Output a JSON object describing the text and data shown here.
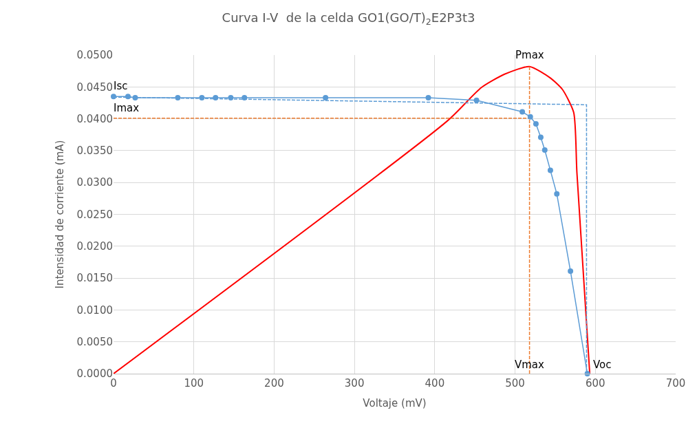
{
  "chart_data": {
    "type": "line",
    "title": "Curva I-V  de la celda GO1(GO/T)$_{2}$E2P3t3",
    "xlabel": "Voltaje (mV)",
    "ylabel": "Intensidad de corriente (mA)",
    "xlim": [
      0,
      700
    ],
    "xticks": [
      0,
      100,
      200,
      300,
      400,
      500,
      600,
      700
    ],
    "ylim": [
      0,
      0.05
    ],
    "yticks": [
      {
        "value": 0,
        "label": "0.0000"
      },
      {
        "value": 0.005,
        "label": "0.0050"
      },
      {
        "value": 0.01,
        "label": "0.0100"
      },
      {
        "value": 0.015,
        "label": "0.0150"
      },
      {
        "value": 0.02,
        "label": "0.0200"
      },
      {
        "value": 0.025,
        "label": "0.0250"
      },
      {
        "value": 0.03,
        "label": "0.0300"
      },
      {
        "value": 0.035,
        "label": "0.0350"
      },
      {
        "value": 0.04,
        "label": "0.0400"
      },
      {
        "value": 0.045,
        "label": "0.0450"
      },
      {
        "value": 0.05,
        "label": "0.0500"
      }
    ],
    "grid": true,
    "series": [
      {
        "color": "#ff0000",
        "marker": "none",
        "line_style": "solid",
        "x": [
          0,
          416,
          458,
          487,
          518,
          544,
          559,
          573,
          577,
          593
        ],
        "values": [
          0,
          0.0397,
          0.0449,
          0.047,
          0.0482,
          0.0464,
          0.0446,
          0.041,
          0.0316,
          0
        ]
      },
      {
        "color": "#5b9bd5",
        "marker": "none",
        "line_style": "dashed",
        "x": [
          0,
          589,
          589
        ],
        "values": [
          0.0434,
          0.0422,
          0
        ]
      },
      {
        "color": "#ed7d31",
        "marker": "none",
        "line_style": "dashed",
        "x": [
          0,
          518,
          null,
          518,
          518
        ],
        "values": [
          0.0401,
          0.0401,
          null,
          0,
          0.0482
        ]
      },
      {
        "color": "#5b9bd5",
        "marker": "circle",
        "line_style": "solid",
        "x": [
          0,
          18,
          27,
          80,
          110,
          127,
          146,
          163,
          264,
          392,
          452,
          509,
          519,
          526,
          532,
          537,
          544,
          552,
          569,
          590
        ],
        "values": [
          0.0435,
          0.0435,
          0.0433,
          0.0433,
          0.0433,
          0.0433,
          0.0433,
          0.0433,
          0.0433,
          0.0433,
          0.0429,
          0.0411,
          0.0403,
          0.0392,
          0.0371,
          0.0351,
          0.0319,
          0.0282,
          0.0161,
          0
        ]
      }
    ],
    "annotations": [
      {
        "text": "Isc",
        "x": 0,
        "y": 0.0435
      },
      {
        "text": "Imax",
        "x": 0,
        "y": 0.0401
      },
      {
        "text": "Pmax",
        "x": 518,
        "y": 0.0482
      },
      {
        "text": "Vmax",
        "x": 518,
        "y": 0
      },
      {
        "text": "Voc",
        "x": 590,
        "y": 0
      }
    ]
  }
}
